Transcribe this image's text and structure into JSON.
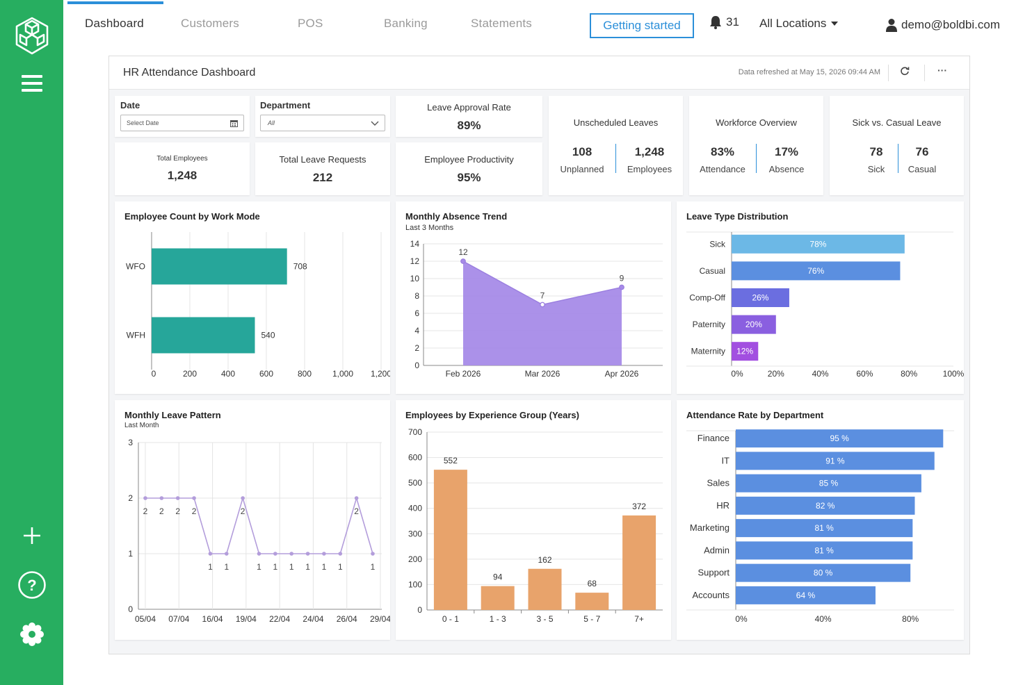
{
  "topnav": {
    "tabs": [
      "Dashboard",
      "Customers",
      "POS",
      "Banking",
      "Statements"
    ],
    "getting_started": "Getting started",
    "notification_count": "31",
    "location_select": "All Locations",
    "user_email": "demo@boldbi.com"
  },
  "dashboard": {
    "title": "HR Attendance Dashboard",
    "refreshed": "Data refreshed at May 15, 2026 09:44 AM",
    "more_menu": "···"
  },
  "filters": {
    "date_label": "Date",
    "date_placeholder": "Select Date",
    "department_label": "Department",
    "department_value": "All"
  },
  "kpis": {
    "leave_approval": {
      "title": "Leave Approval Rate",
      "value": "89%"
    },
    "total_employees": {
      "title": "Total Employees",
      "value": "1,248"
    },
    "total_leave_requests": {
      "title": "Total Leave Requests",
      "value": "212"
    },
    "employee_productivity": {
      "title": "Employee Productivity",
      "value": "95%"
    },
    "unscheduled": {
      "title": "Unscheduled Leaves",
      "left_value": "108",
      "left_label": "Unplanned",
      "right_value": "1,248",
      "right_label": "Employees"
    },
    "workforce": {
      "title": "Workforce Overview",
      "left_value": "83%",
      "left_label": "Attendance",
      "right_value": "17%",
      "right_label": "Absence"
    },
    "sick_casual": {
      "title": "Sick vs. Casual Leave",
      "left_value": "78",
      "left_label": "Sick",
      "right_value": "76",
      "right_label": "Casual"
    }
  },
  "chart_data": [
    {
      "id": "work_mode",
      "type": "bar",
      "orientation": "horizontal",
      "title": "Employee Count by Work Mode",
      "categories": [
        "WFO",
        "WFH"
      ],
      "values": [
        708,
        540
      ],
      "xlim": [
        0,
        1200
      ],
      "xticks": [
        "0",
        "200",
        "400",
        "600",
        "800",
        "1,000",
        "1,200"
      ],
      "color": "#26a69a"
    },
    {
      "id": "absence_trend",
      "type": "area",
      "title": "Monthly Absence Trend",
      "subtitle": "Last 3 Months",
      "categories": [
        "Feb 2026",
        "Mar 2026",
        "Apr 2026"
      ],
      "values": [
        12,
        7,
        9
      ],
      "ylim": [
        0,
        14
      ],
      "yticks": [
        "0",
        "2",
        "4",
        "6",
        "8",
        "10",
        "12",
        "14"
      ],
      "color": "#a78be8"
    },
    {
      "id": "leave_type",
      "type": "bar",
      "orientation": "horizontal",
      "title": "Leave Type Distribution",
      "categories": [
        "Sick",
        "Casual",
        "Comp-Off",
        "Paternity",
        "Maternity"
      ],
      "values": [
        78,
        76,
        26,
        20,
        12
      ],
      "labels": [
        "78%",
        "76%",
        "26%",
        "20%",
        "12%"
      ],
      "colors": [
        "#6cb8e6",
        "#5b8fe0",
        "#6b6ee0",
        "#8a5fe0",
        "#a24fe0"
      ],
      "xlim": [
        0,
        100
      ],
      "xticks": [
        "0%",
        "20%",
        "40%",
        "60%",
        "80%",
        "100%"
      ]
    },
    {
      "id": "leave_pattern",
      "type": "line",
      "title": "Monthly Leave Pattern",
      "subtitle": "Last Month",
      "values": [
        2,
        2,
        2,
        2,
        1,
        1,
        2,
        1,
        1,
        1,
        1,
        1,
        1,
        2,
        1
      ],
      "xticks": [
        "05/04",
        "07/04",
        "16/04",
        "19/04",
        "22/04",
        "24/04",
        "26/04",
        "29/04"
      ],
      "ylim": [
        0,
        3
      ],
      "yticks": [
        "0",
        "1",
        "2",
        "3"
      ],
      "color": "#b39ddb"
    },
    {
      "id": "experience",
      "type": "bar",
      "title": "Employees by Experience Group (Years)",
      "categories": [
        "0 - 1",
        "1 - 3",
        "3 - 5",
        "5 - 7",
        "7+"
      ],
      "values": [
        552,
        94,
        162,
        68,
        372
      ],
      "ylim": [
        0,
        700
      ],
      "yticks": [
        "0",
        "100",
        "200",
        "300",
        "400",
        "500",
        "600",
        "700"
      ],
      "color": "#e8a36b"
    },
    {
      "id": "dept_attendance",
      "type": "bar",
      "orientation": "horizontal",
      "title": "Attendance Rate by Department",
      "categories": [
        "Finance",
        "IT",
        "Sales",
        "HR",
        "Marketing",
        "Admin",
        "Support",
        "Accounts"
      ],
      "values": [
        95,
        91,
        85,
        82,
        81,
        81,
        80,
        64
      ],
      "labels": [
        "95 %",
        "91 %",
        "85 %",
        "82 %",
        "81 %",
        "81 %",
        "80 %",
        "64 %"
      ],
      "xlim": [
        0,
        100
      ],
      "xticks": [
        "0%",
        "40%",
        "80%"
      ],
      "color": "#5b8fe0"
    }
  ]
}
